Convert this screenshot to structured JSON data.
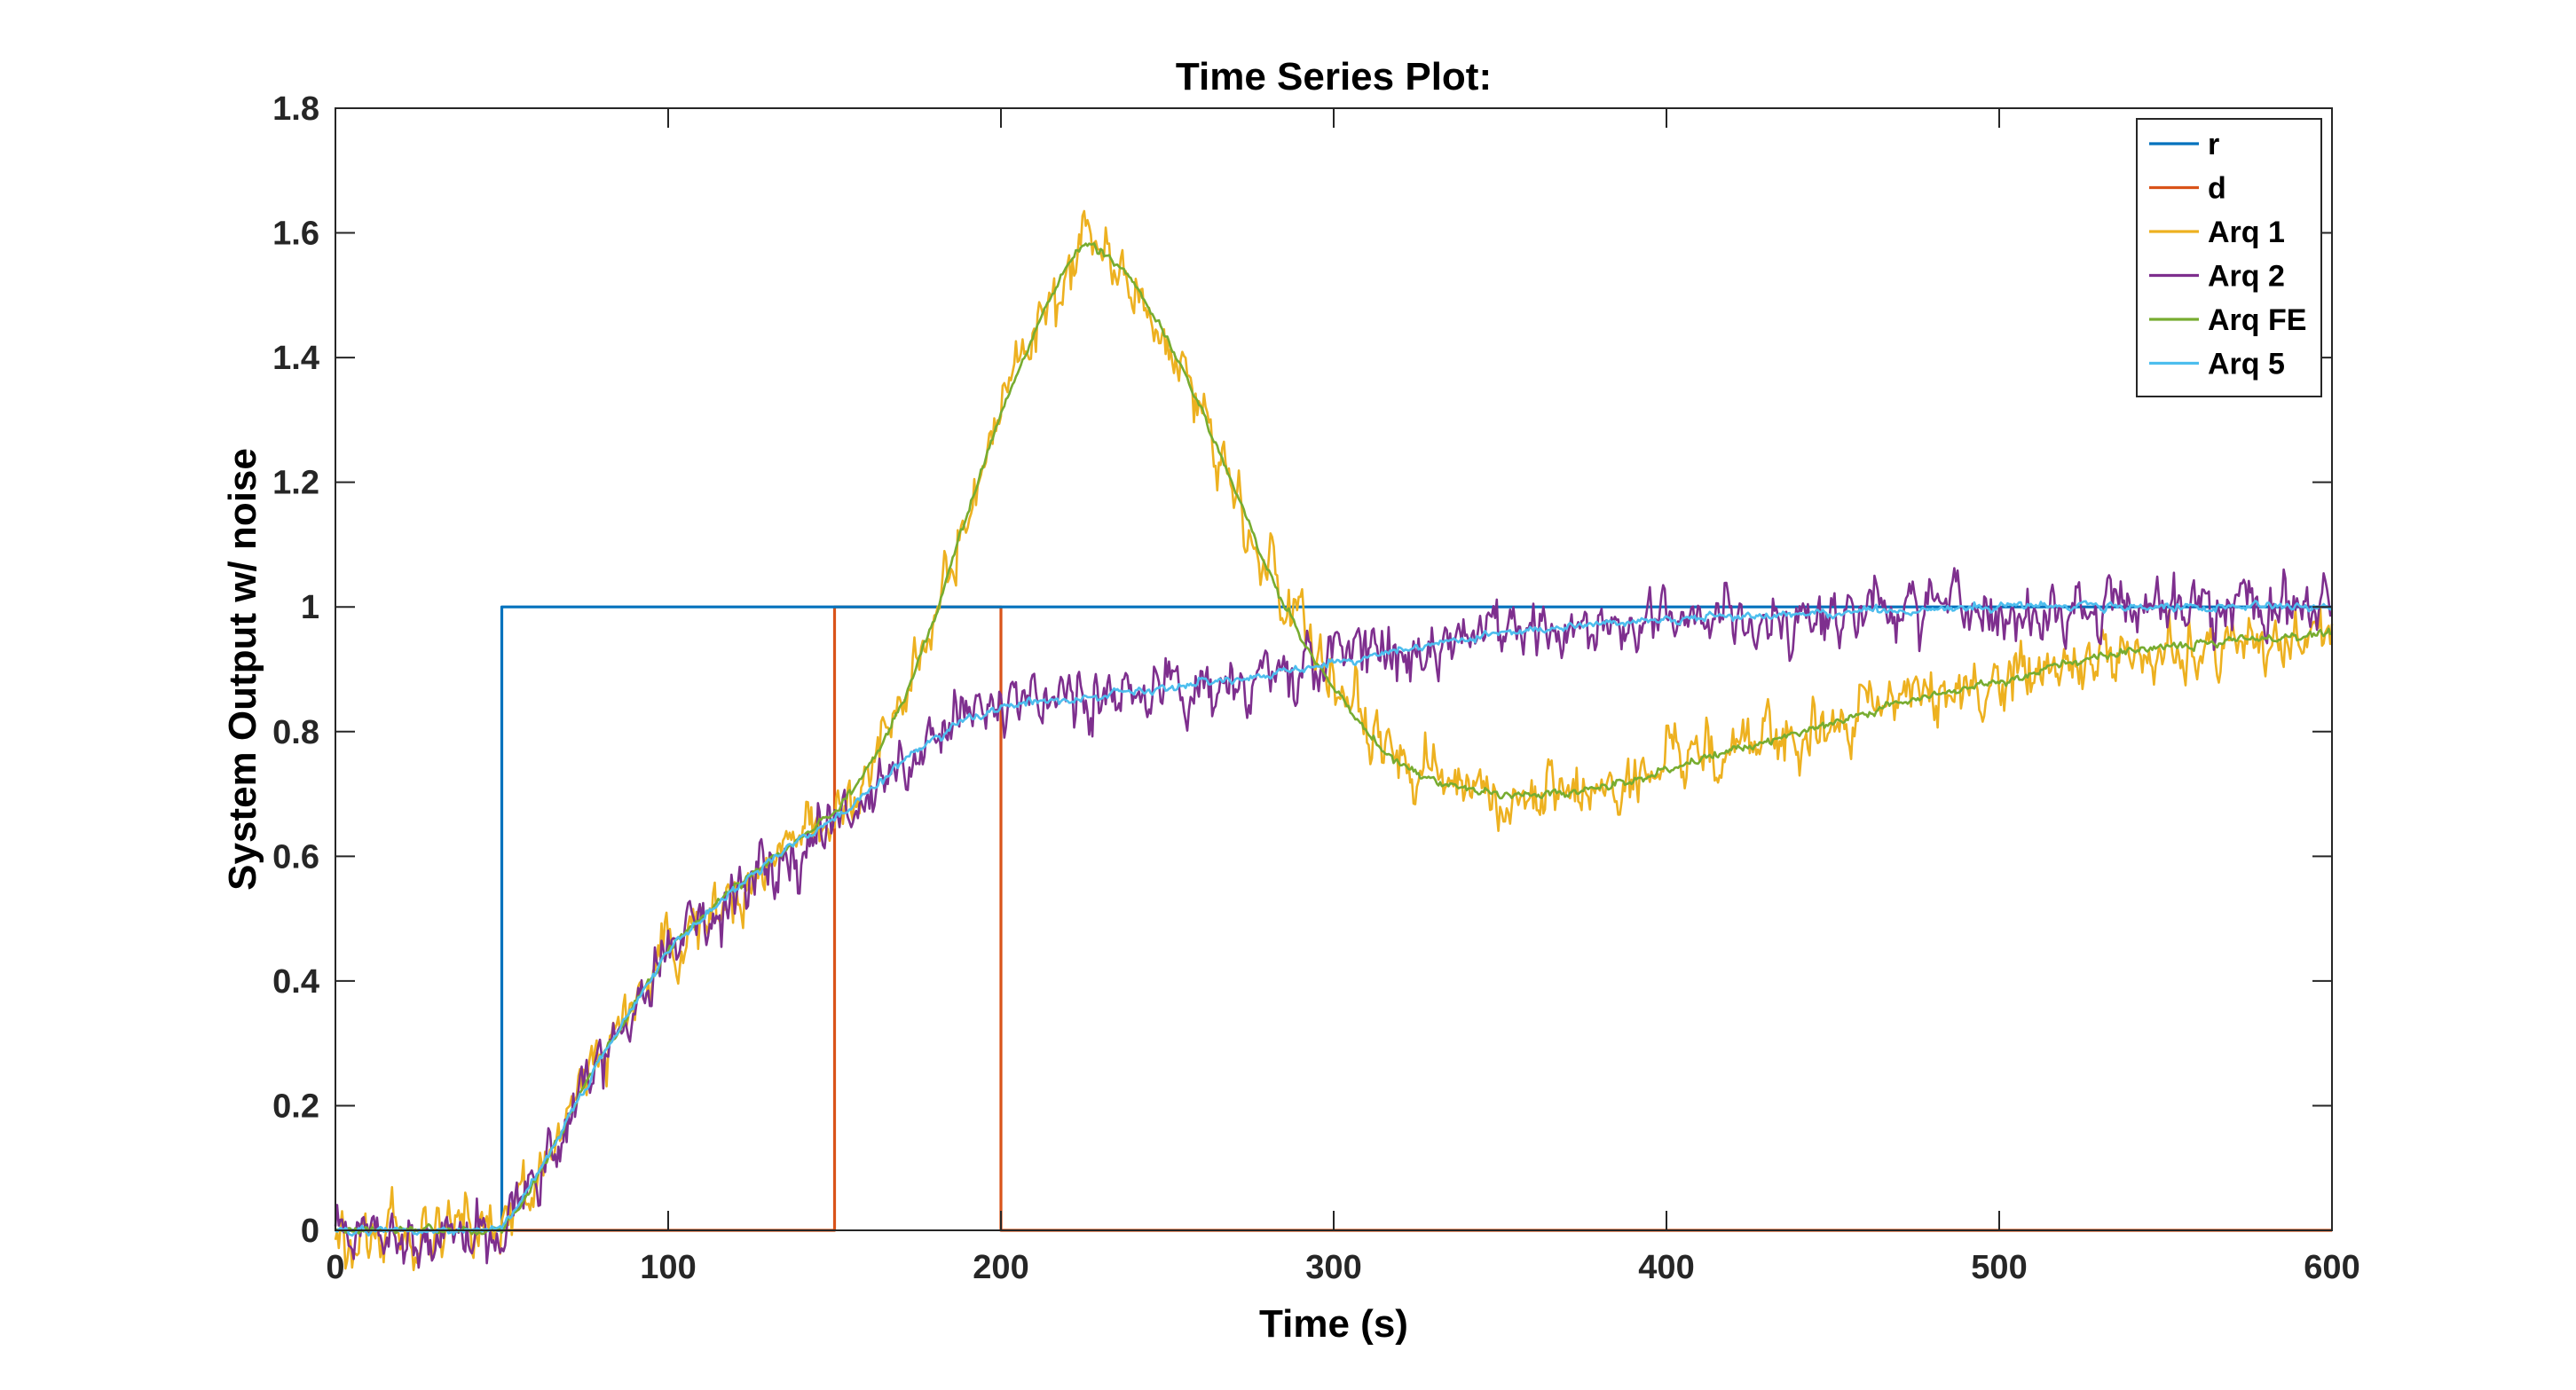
{
  "chart_data": {
    "type": "line",
    "title": "Time Series Plot:",
    "xlabel": "Time (s)",
    "ylabel": "System Output w/ noise",
    "xlim": [
      0,
      600
    ],
    "ylim": [
      0,
      1.8
    ],
    "xticks": [
      0,
      100,
      200,
      300,
      400,
      500,
      600
    ],
    "xtick_labels": [
      "0",
      "100",
      "200",
      "300",
      "400",
      "500",
      "600"
    ],
    "yticks": [
      0,
      0.2,
      0.4,
      0.6,
      0.8,
      1,
      1.2,
      1.4,
      1.6,
      1.8
    ],
    "ytick_labels": [
      "0",
      "0.2",
      "0.4",
      "0.6",
      "0.8",
      "1",
      "1.2",
      "1.4",
      "1.6",
      "1.8"
    ],
    "grid": false,
    "legend_position": "top-right",
    "series": [
      {
        "name": "r",
        "color": "#0072BD",
        "x": [
          0,
          50,
          50,
          600
        ],
        "y": [
          0,
          0,
          1,
          1
        ]
      },
      {
        "name": "d",
        "color": "#D95319",
        "x": [
          0,
          150,
          150,
          200,
          200,
          600
        ],
        "y": [
          0,
          0,
          1,
          1,
          0,
          0
        ]
      },
      {
        "name": "Arq 1",
        "color": "#EDB120",
        "noise": 0.03,
        "x": [
          0,
          50,
          60,
          80,
          100,
          120,
          140,
          150,
          160,
          170,
          180,
          190,
          200,
          210,
          220,
          225,
          230,
          240,
          250,
          260,
          270,
          280,
          290,
          300,
          310,
          320,
          330,
          340,
          350,
          360,
          370,
          380,
          390,
          400,
          420,
          440,
          460,
          480,
          500,
          520,
          540,
          560,
          580,
          600
        ],
        "y": [
          0,
          0,
          0.08,
          0.28,
          0.45,
          0.55,
          0.63,
          0.67,
          0.74,
          0.84,
          0.98,
          1.15,
          1.31,
          1.44,
          1.55,
          1.585,
          1.575,
          1.52,
          1.43,
          1.32,
          1.19,
          1.06,
          0.95,
          0.87,
          0.8,
          0.75,
          0.72,
          0.71,
          0.7,
          0.7,
          0.7,
          0.71,
          0.72,
          0.74,
          0.77,
          0.8,
          0.83,
          0.86,
          0.88,
          0.91,
          0.93,
          0.94,
          0.95,
          0.96
        ]
      },
      {
        "name": "Arq 2",
        "color": "#7E2F8E",
        "noise": 0.03,
        "x": [
          0,
          50,
          60,
          80,
          100,
          120,
          140,
          150,
          160,
          170,
          180,
          190,
          200,
          220,
          250,
          280,
          300,
          320,
          350,
          400,
          450,
          500,
          550,
          600
        ],
        "y": [
          0,
          0,
          0.08,
          0.28,
          0.45,
          0.55,
          0.63,
          0.66,
          0.7,
          0.75,
          0.79,
          0.82,
          0.84,
          0.85,
          0.87,
          0.89,
          0.91,
          0.93,
          0.96,
          0.98,
          0.99,
          1.0,
          1.0,
          1.0
        ]
      },
      {
        "name": "Arq FE",
        "color": "#77AC30",
        "noise": 0.004,
        "x": [
          0,
          50,
          60,
          80,
          100,
          120,
          140,
          150,
          160,
          170,
          180,
          190,
          200,
          210,
          220,
          225,
          230,
          240,
          250,
          260,
          270,
          280,
          290,
          300,
          310,
          320,
          330,
          340,
          350,
          360,
          370,
          380,
          390,
          400,
          420,
          440,
          460,
          480,
          500,
          520,
          540,
          560,
          580,
          600
        ],
        "y": [
          0,
          0,
          0.08,
          0.28,
          0.45,
          0.55,
          0.63,
          0.67,
          0.74,
          0.84,
          0.98,
          1.15,
          1.31,
          1.44,
          1.55,
          1.585,
          1.575,
          1.52,
          1.43,
          1.32,
          1.19,
          1.06,
          0.95,
          0.87,
          0.8,
          0.75,
          0.72,
          0.71,
          0.7,
          0.7,
          0.7,
          0.71,
          0.72,
          0.74,
          0.77,
          0.8,
          0.83,
          0.86,
          0.88,
          0.91,
          0.93,
          0.94,
          0.95,
          0.96
        ]
      },
      {
        "name": "Arq 5",
        "color": "#4DBEEE",
        "noise": 0.004,
        "x": [
          0,
          50,
          60,
          80,
          100,
          120,
          140,
          150,
          160,
          170,
          180,
          190,
          200,
          220,
          250,
          280,
          300,
          320,
          350,
          400,
          450,
          500,
          550,
          600
        ],
        "y": [
          0,
          0,
          0.08,
          0.28,
          0.45,
          0.55,
          0.63,
          0.66,
          0.7,
          0.75,
          0.79,
          0.82,
          0.84,
          0.85,
          0.87,
          0.89,
          0.91,
          0.93,
          0.96,
          0.98,
          0.99,
          1.0,
          1.0,
          1.0
        ]
      }
    ]
  }
}
